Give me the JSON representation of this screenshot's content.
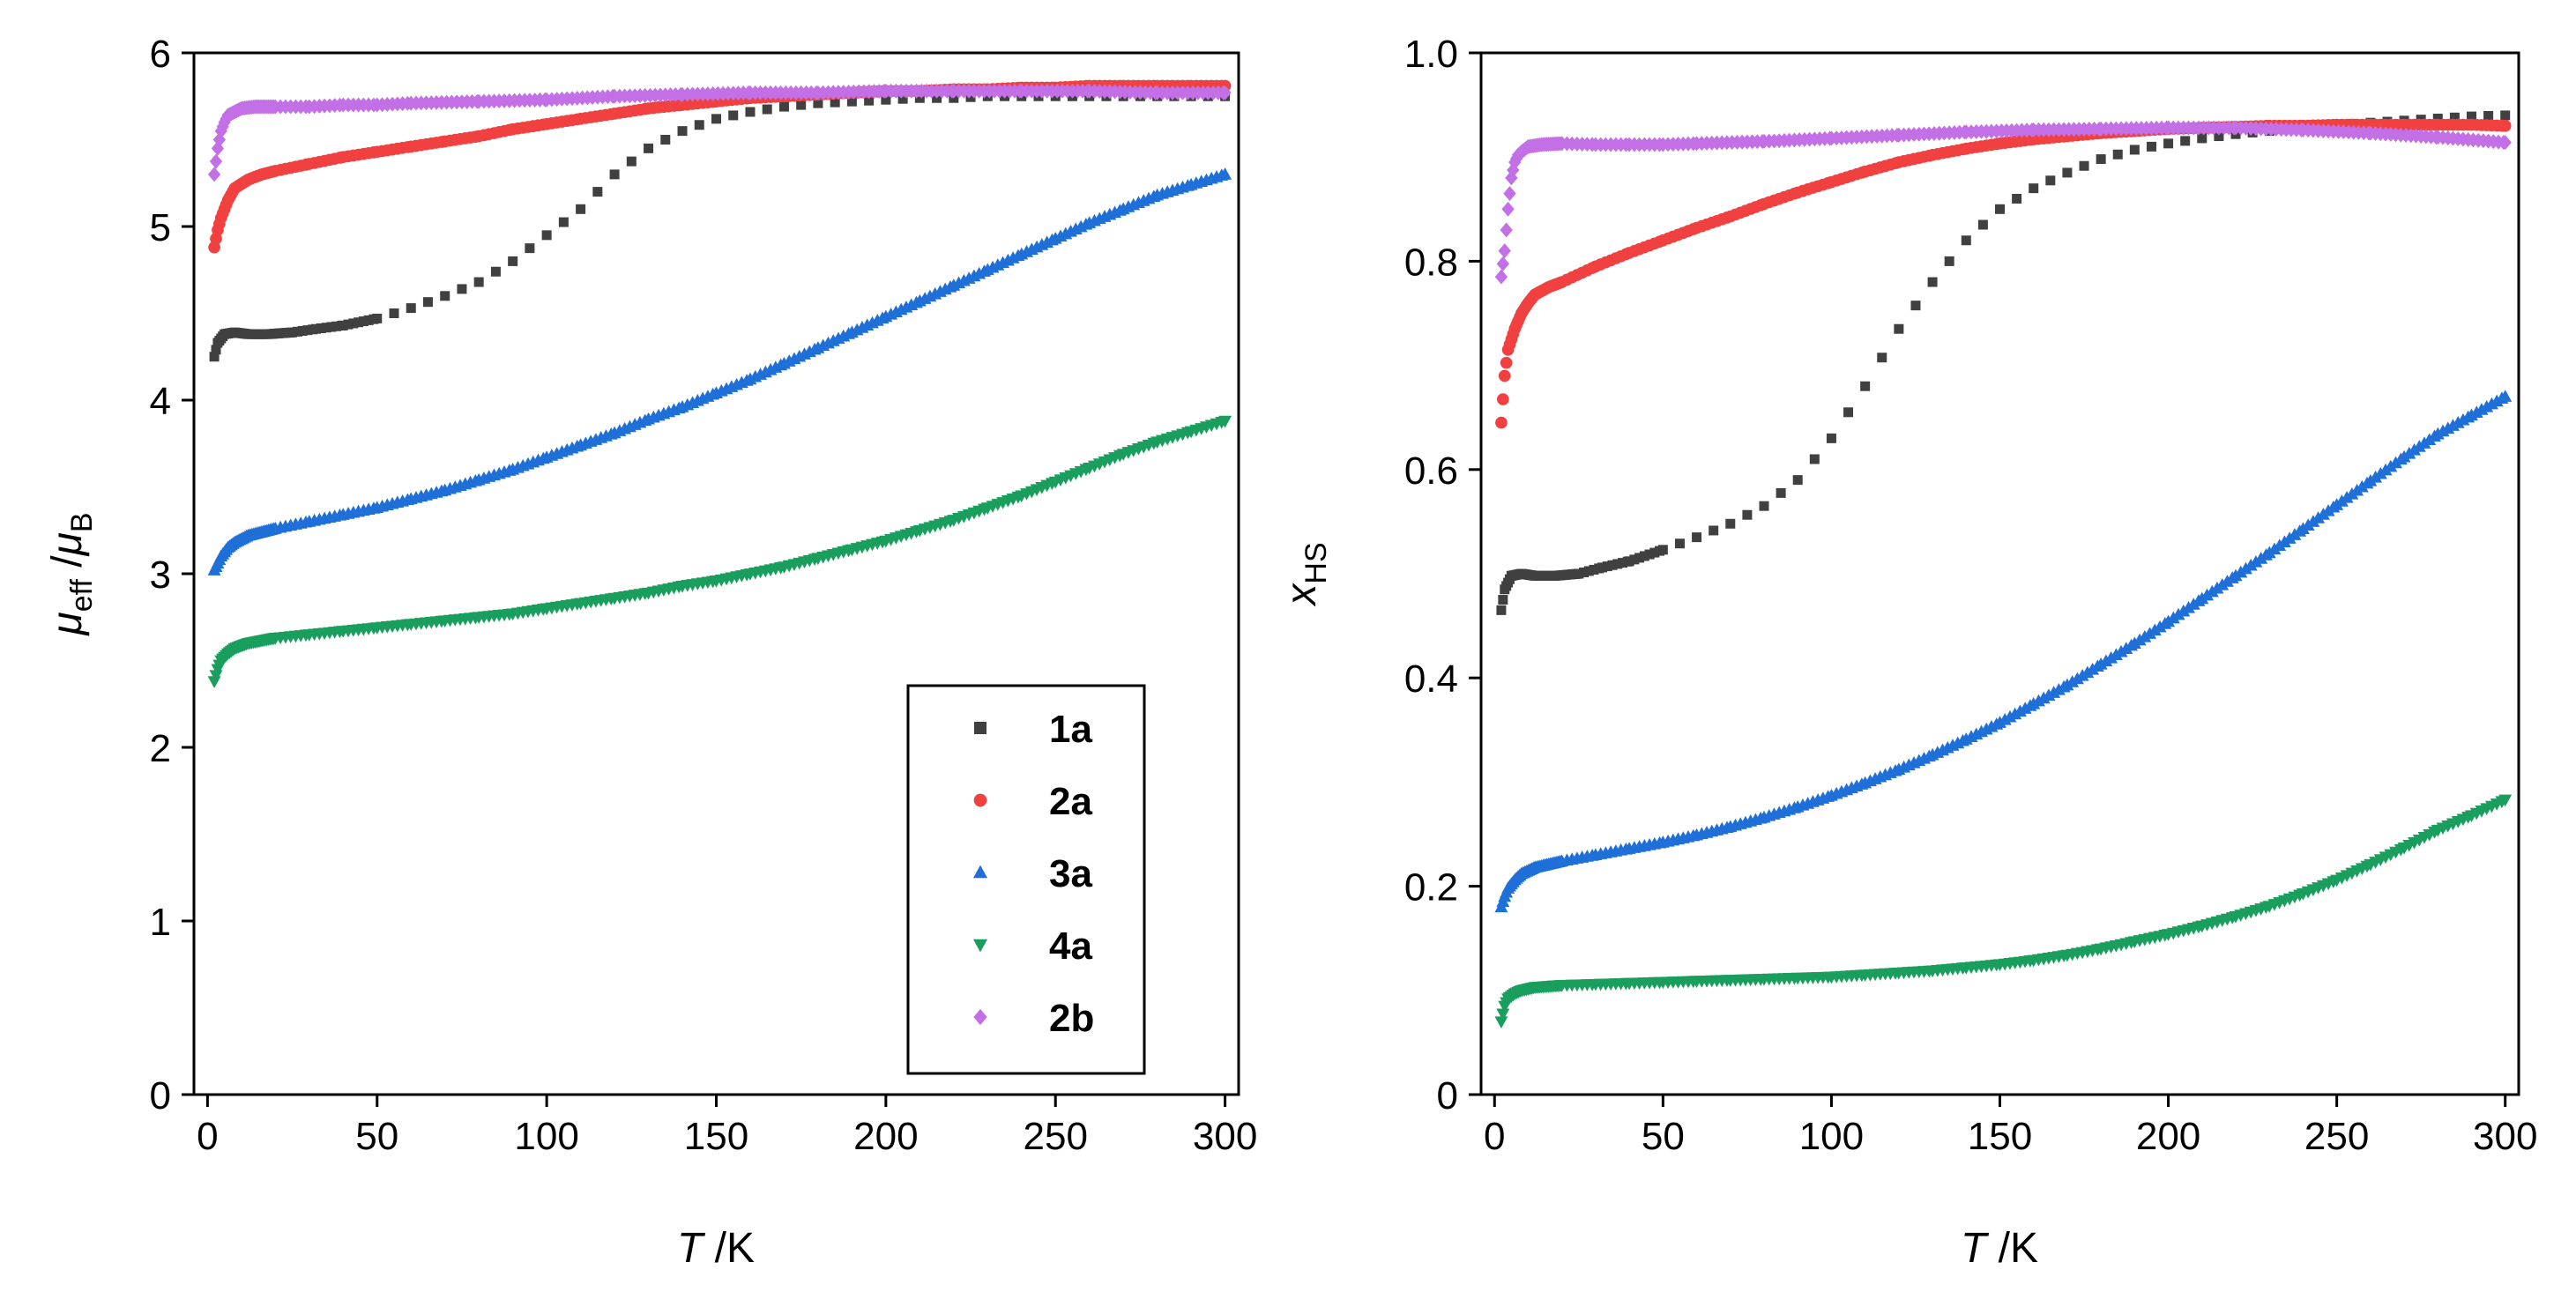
{
  "chart_data": [
    {
      "type": "scatter",
      "xlabel": {
        "italic": "T",
        "rest": " /K"
      },
      "ylabel": {
        "main1": "μ",
        "sub1": "eff",
        "slash": " /",
        "main2": "μ",
        "sub2": "B"
      },
      "xlim": [
        -4,
        304
      ],
      "ylim": [
        0,
        6
      ],
      "xticks": [
        0,
        50,
        100,
        150,
        200,
        250,
        300
      ],
      "xtick_labels": [
        "0",
        "50",
        "100",
        "150",
        "200",
        "250",
        "300"
      ],
      "yticks": [
        0,
        1,
        2,
        3,
        4,
        5,
        6
      ],
      "ytick_labels": [
        "0",
        "1",
        "2",
        "3",
        "4",
        "5",
        "6"
      ],
      "grid": false,
      "legend_position": "bottom-right",
      "series": [
        {
          "name": "1a",
          "color": "#404040",
          "marker": "square",
          "x": [
            2,
            3,
            5,
            8,
            12,
            18,
            25,
            32,
            40,
            50,
            60,
            70,
            80,
            90,
            100,
            110,
            120,
            130,
            140,
            150,
            160,
            170,
            180,
            190,
            200,
            210,
            220,
            230,
            240,
            250,
            260,
            270,
            280,
            290,
            300
          ],
          "y": [
            4.25,
            4.33,
            4.38,
            4.39,
            4.38,
            4.38,
            4.39,
            4.41,
            4.43,
            4.47,
            4.53,
            4.6,
            4.68,
            4.8,
            4.95,
            5.1,
            5.3,
            5.45,
            5.55,
            5.62,
            5.66,
            5.69,
            5.71,
            5.72,
            5.73,
            5.74,
            5.74,
            5.75,
            5.75,
            5.75,
            5.75,
            5.75,
            5.75,
            5.75,
            5.75
          ]
        },
        {
          "name": "2a",
          "color": "#f04040",
          "marker": "circle",
          "x": [
            2,
            3,
            4,
            6,
            8,
            12,
            16,
            20,
            30,
            40,
            50,
            60,
            70,
            80,
            90,
            100,
            110,
            120,
            130,
            140,
            150,
            160,
            170,
            180,
            190,
            200,
            210,
            220,
            230,
            240,
            250,
            260,
            270,
            280,
            290,
            300
          ],
          "y": [
            4.88,
            4.98,
            5.05,
            5.15,
            5.22,
            5.27,
            5.3,
            5.32,
            5.36,
            5.4,
            5.43,
            5.46,
            5.49,
            5.52,
            5.56,
            5.59,
            5.62,
            5.65,
            5.68,
            5.7,
            5.72,
            5.74,
            5.75,
            5.76,
            5.77,
            5.78,
            5.78,
            5.79,
            5.79,
            5.8,
            5.8,
            5.81,
            5.81,
            5.81,
            5.81,
            5.81
          ]
        },
        {
          "name": "3a",
          "color": "#1f6fd8",
          "marker": "triangle-up",
          "x": [
            2,
            3,
            4,
            6,
            8,
            12,
            20,
            30,
            40,
            50,
            60,
            70,
            80,
            90,
            100,
            110,
            120,
            130,
            140,
            150,
            160,
            170,
            180,
            190,
            200,
            210,
            220,
            230,
            240,
            250,
            260,
            270,
            280,
            290,
            300
          ],
          "y": [
            3.02,
            3.06,
            3.1,
            3.15,
            3.18,
            3.22,
            3.26,
            3.3,
            3.34,
            3.38,
            3.43,
            3.48,
            3.54,
            3.6,
            3.67,
            3.74,
            3.81,
            3.89,
            3.96,
            4.04,
            4.12,
            4.21,
            4.3,
            4.39,
            4.48,
            4.57,
            4.66,
            4.75,
            4.84,
            4.93,
            5.02,
            5.1,
            5.18,
            5.24,
            5.3
          ]
        },
        {
          "name": "4a",
          "color": "#1a9e5e",
          "marker": "triangle-down",
          "x": [
            2,
            3,
            4,
            6,
            8,
            12,
            20,
            30,
            40,
            50,
            60,
            70,
            80,
            90,
            100,
            110,
            120,
            130,
            140,
            150,
            160,
            170,
            180,
            190,
            200,
            210,
            220,
            230,
            240,
            250,
            260,
            270,
            280,
            290,
            300
          ],
          "y": [
            2.38,
            2.45,
            2.5,
            2.54,
            2.57,
            2.6,
            2.63,
            2.65,
            2.67,
            2.69,
            2.71,
            2.73,
            2.75,
            2.77,
            2.8,
            2.83,
            2.86,
            2.89,
            2.93,
            2.96,
            3.0,
            3.04,
            3.09,
            3.14,
            3.19,
            3.25,
            3.31,
            3.38,
            3.45,
            3.53,
            3.61,
            3.69,
            3.76,
            3.82,
            3.88
          ]
        },
        {
          "name": "2b",
          "color": "#c36fe6",
          "marker": "diamond",
          "x": [
            2,
            3,
            4,
            5,
            6,
            8,
            10,
            14,
            20,
            30,
            40,
            50,
            60,
            80,
            100,
            120,
            140,
            160,
            180,
            200,
            220,
            240,
            260,
            280,
            300
          ],
          "y": [
            5.3,
            5.45,
            5.55,
            5.6,
            5.64,
            5.66,
            5.68,
            5.69,
            5.69,
            5.69,
            5.7,
            5.7,
            5.71,
            5.72,
            5.73,
            5.75,
            5.76,
            5.77,
            5.77,
            5.78,
            5.78,
            5.78,
            5.78,
            5.77,
            5.77
          ]
        }
      ]
    },
    {
      "type": "scatter",
      "xlabel": {
        "italic": "T",
        "rest": " /K"
      },
      "ylabel": {
        "main1": "x",
        "sub1": "HS"
      },
      "xlim": [
        -4,
        304
      ],
      "ylim": [
        0,
        1.0
      ],
      "xticks": [
        0,
        50,
        100,
        150,
        200,
        250,
        300
      ],
      "xtick_labels": [
        "0",
        "50",
        "100",
        "150",
        "200",
        "250",
        "300"
      ],
      "yticks": [
        0,
        0.2,
        0.4,
        0.6,
        0.8,
        1.0
      ],
      "ytick_labels": [
        "0",
        "0.2",
        "0.4",
        "0.6",
        "0.8",
        "1.0"
      ],
      "grid": false,
      "series": [
        {
          "name": "1a",
          "color": "#404040",
          "marker": "square",
          "x": [
            2,
            3,
            5,
            8,
            12,
            18,
            25,
            32,
            40,
            50,
            60,
            70,
            80,
            90,
            100,
            110,
            120,
            130,
            140,
            150,
            160,
            170,
            180,
            190,
            200,
            210,
            220,
            230,
            240,
            250,
            260,
            270,
            280,
            290,
            300
          ],
          "y": [
            0.465,
            0.485,
            0.498,
            0.5,
            0.498,
            0.498,
            0.5,
            0.506,
            0.512,
            0.523,
            0.535,
            0.548,
            0.565,
            0.59,
            0.63,
            0.68,
            0.735,
            0.78,
            0.82,
            0.85,
            0.87,
            0.885,
            0.898,
            0.907,
            0.913,
            0.918,
            0.922,
            0.925,
            0.928,
            0.931,
            0.933,
            0.935,
            0.937,
            0.939,
            0.94
          ]
        },
        {
          "name": "2a",
          "color": "#f04040",
          "marker": "circle",
          "x": [
            2,
            3,
            4,
            6,
            8,
            10,
            12,
            16,
            20,
            30,
            40,
            50,
            60,
            70,
            80,
            90,
            100,
            110,
            120,
            130,
            140,
            150,
            160,
            170,
            180,
            190,
            200,
            210,
            220,
            230,
            240,
            250,
            260,
            270,
            280,
            290,
            300
          ],
          "y": [
            0.645,
            0.69,
            0.715,
            0.735,
            0.75,
            0.76,
            0.768,
            0.775,
            0.78,
            0.795,
            0.808,
            0.82,
            0.832,
            0.843,
            0.855,
            0.866,
            0.876,
            0.886,
            0.895,
            0.902,
            0.908,
            0.913,
            0.917,
            0.92,
            0.923,
            0.925,
            0.927,
            0.928,
            0.929,
            0.93,
            0.93,
            0.931,
            0.931,
            0.931,
            0.931,
            0.931,
            0.93
          ]
        },
        {
          "name": "3a",
          "color": "#1f6fd8",
          "marker": "triangle-up",
          "x": [
            2,
            3,
            4,
            6,
            8,
            12,
            20,
            30,
            40,
            50,
            60,
            70,
            80,
            90,
            100,
            110,
            120,
            130,
            140,
            150,
            160,
            170,
            180,
            190,
            200,
            210,
            220,
            230,
            240,
            250,
            260,
            270,
            280,
            290,
            300
          ],
          "y": [
            0.18,
            0.19,
            0.198,
            0.206,
            0.212,
            0.218,
            0.224,
            0.23,
            0.236,
            0.242,
            0.249,
            0.257,
            0.266,
            0.276,
            0.287,
            0.299,
            0.312,
            0.326,
            0.341,
            0.357,
            0.375,
            0.393,
            0.413,
            0.433,
            0.454,
            0.476,
            0.498,
            0.52,
            0.543,
            0.566,
            0.589,
            0.612,
            0.634,
            0.652,
            0.67
          ]
        },
        {
          "name": "4a",
          "color": "#1a9e5e",
          "marker": "triangle-down",
          "x": [
            2,
            3,
            4,
            6,
            8,
            12,
            20,
            30,
            40,
            50,
            60,
            70,
            80,
            90,
            100,
            110,
            120,
            130,
            140,
            150,
            160,
            170,
            180,
            190,
            200,
            210,
            220,
            230,
            240,
            250,
            260,
            270,
            280,
            290,
            300
          ],
          "y": [
            0.07,
            0.085,
            0.092,
            0.097,
            0.1,
            0.103,
            0.105,
            0.106,
            0.107,
            0.108,
            0.109,
            0.11,
            0.111,
            0.112,
            0.113,
            0.115,
            0.117,
            0.119,
            0.122,
            0.125,
            0.129,
            0.134,
            0.14,
            0.147,
            0.154,
            0.162,
            0.171,
            0.181,
            0.193,
            0.206,
            0.221,
            0.237,
            0.254,
            0.268,
            0.283
          ]
        },
        {
          "name": "2b",
          "color": "#c36fe6",
          "marker": "diamond",
          "x": [
            2,
            3,
            4,
            5,
            6,
            7,
            8,
            10,
            14,
            20,
            30,
            40,
            50,
            60,
            80,
            100,
            120,
            140,
            160,
            180,
            200,
            220,
            240,
            260,
            280,
            300
          ],
          "y": [
            0.785,
            0.81,
            0.85,
            0.88,
            0.895,
            0.902,
            0.905,
            0.91,
            0.912,
            0.913,
            0.912,
            0.912,
            0.912,
            0.913,
            0.915,
            0.918,
            0.921,
            0.924,
            0.926,
            0.927,
            0.928,
            0.928,
            0.926,
            0.923,
            0.919,
            0.914
          ]
        }
      ]
    }
  ]
}
